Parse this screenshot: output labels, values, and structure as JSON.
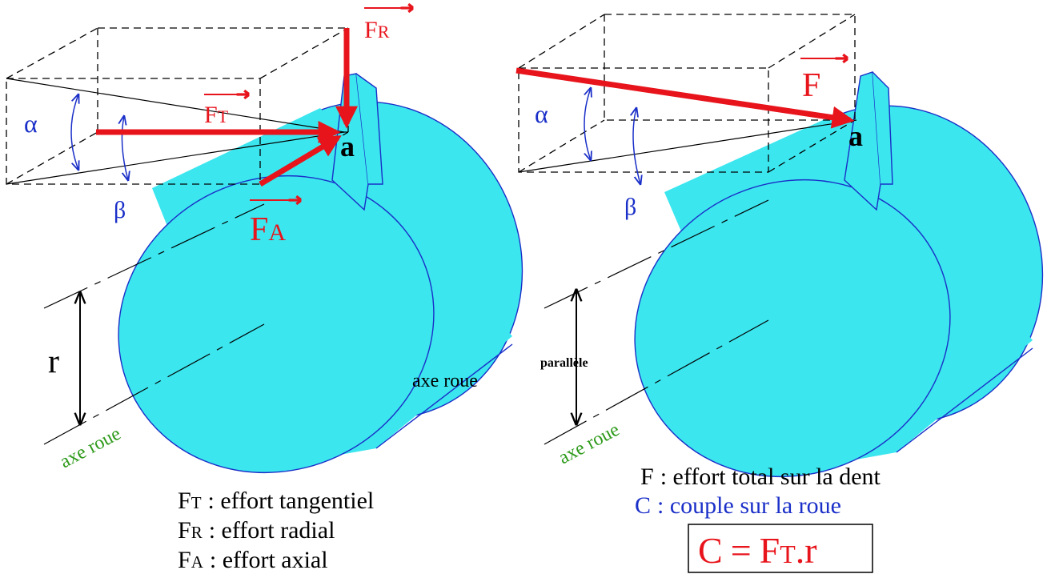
{
  "left": {
    "force_labels": [
      {
        "symbol": "F",
        "sub": "R"
      },
      {
        "symbol": "F",
        "sub": "T"
      },
      {
        "symbol": "F",
        "sub": "A"
      }
    ],
    "point": "a",
    "alpha": "α",
    "beta": "β",
    "radius": "r",
    "axis_label": "axe roue",
    "axis_label_2": "axe roue",
    "legend": [
      {
        "symbol": "F",
        "sub": "T",
        "text": ": effort tangentiel"
      },
      {
        "symbol": "F",
        "sub": "R",
        "text": ": effort radial"
      },
      {
        "symbol": "F",
        "sub": "A",
        "text": ": effort axial"
      }
    ]
  },
  "right": {
    "force_label": "F",
    "point": "a",
    "alpha": "α",
    "beta": "β",
    "parallel": "parallèle",
    "axis_label": "axe roue",
    "legend": [
      {
        "symbol": "F",
        "text": ": effort total sur la dent"
      },
      {
        "symbol": "C",
        "text": ": couple sur la roue"
      }
    ],
    "formula": {
      "lhs": "C",
      "equals": "=",
      "symbol": "F",
      "sub": "T",
      "rest": ".r"
    }
  }
}
